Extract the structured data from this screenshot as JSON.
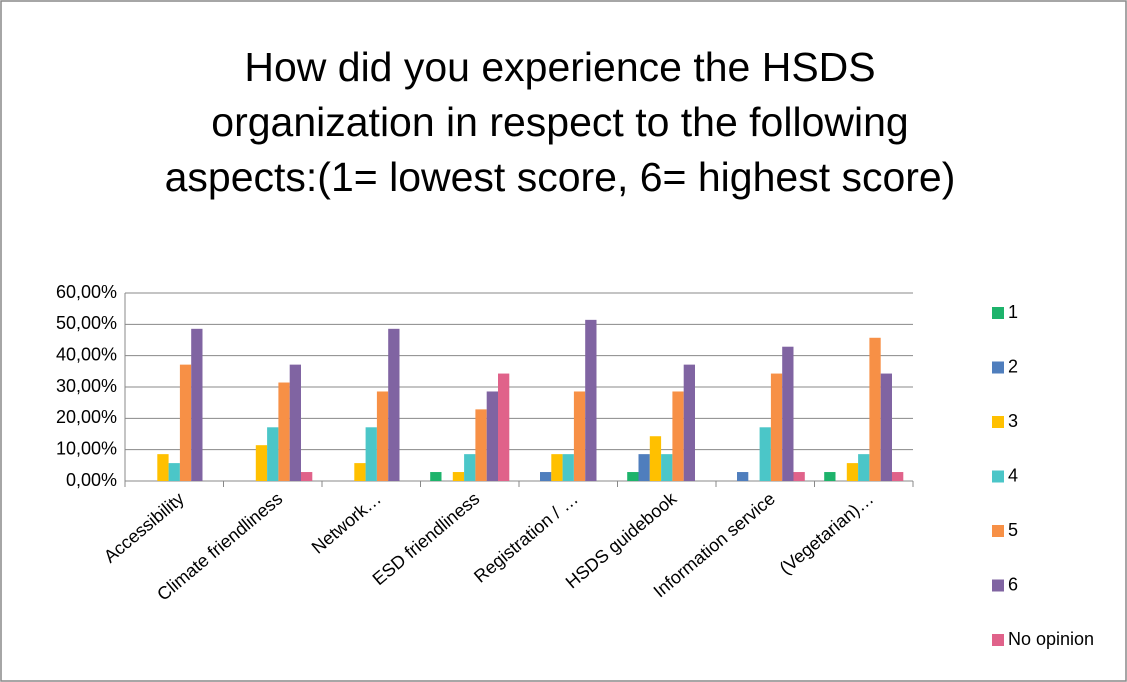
{
  "chart_data": {
    "type": "bar",
    "title": "How did you experience the HSDS organization in respect to the following aspects:(1= lowest score, 6= highest score)",
    "categories": [
      "Accessibility",
      "Climate friendliness",
      "Network…",
      "ESD friendliness",
      "Registration / …",
      "HSDS guidebook",
      "Information service",
      "(Vegetarian)…"
    ],
    "series": [
      {
        "name": "1",
        "color": "#1db36b",
        "values": [
          0,
          0,
          0,
          2.86,
          0,
          2.86,
          0,
          2.86
        ]
      },
      {
        "name": "2",
        "color": "#4f7ebd",
        "values": [
          0,
          0,
          0,
          0,
          2.86,
          8.57,
          2.86,
          0
        ]
      },
      {
        "name": "3",
        "color": "#ffc000",
        "values": [
          8.57,
          11.43,
          5.71,
          2.86,
          8.57,
          14.29,
          0,
          5.71
        ]
      },
      {
        "name": "4",
        "color": "#4bc6c8",
        "values": [
          5.71,
          17.14,
          17.14,
          8.57,
          8.57,
          8.57,
          17.14,
          8.57
        ]
      },
      {
        "name": "5",
        "color": "#f79046",
        "values": [
          37.14,
          31.43,
          28.57,
          22.86,
          28.57,
          28.57,
          34.29,
          45.71
        ]
      },
      {
        "name": "6",
        "color": "#8064a2",
        "values": [
          48.57,
          37.14,
          48.57,
          28.57,
          51.43,
          37.14,
          42.86,
          34.29
        ]
      },
      {
        "name": "No opinion",
        "color": "#e0628a",
        "values": [
          0,
          2.86,
          0,
          34.29,
          0,
          0,
          2.86,
          2.86
        ]
      }
    ],
    "ylim": [
      0,
      60
    ],
    "yticks": [
      {
        "value": 0,
        "label": "0,00%"
      },
      {
        "value": 10,
        "label": "10,00%"
      },
      {
        "value": 20,
        "label": "20,00%"
      },
      {
        "value": 30,
        "label": "30,00%"
      },
      {
        "value": 40,
        "label": "40,00%"
      },
      {
        "value": 50,
        "label": "50,00%"
      },
      {
        "value": 60,
        "label": "60,00%"
      }
    ],
    "grid": true,
    "legend": "right"
  }
}
